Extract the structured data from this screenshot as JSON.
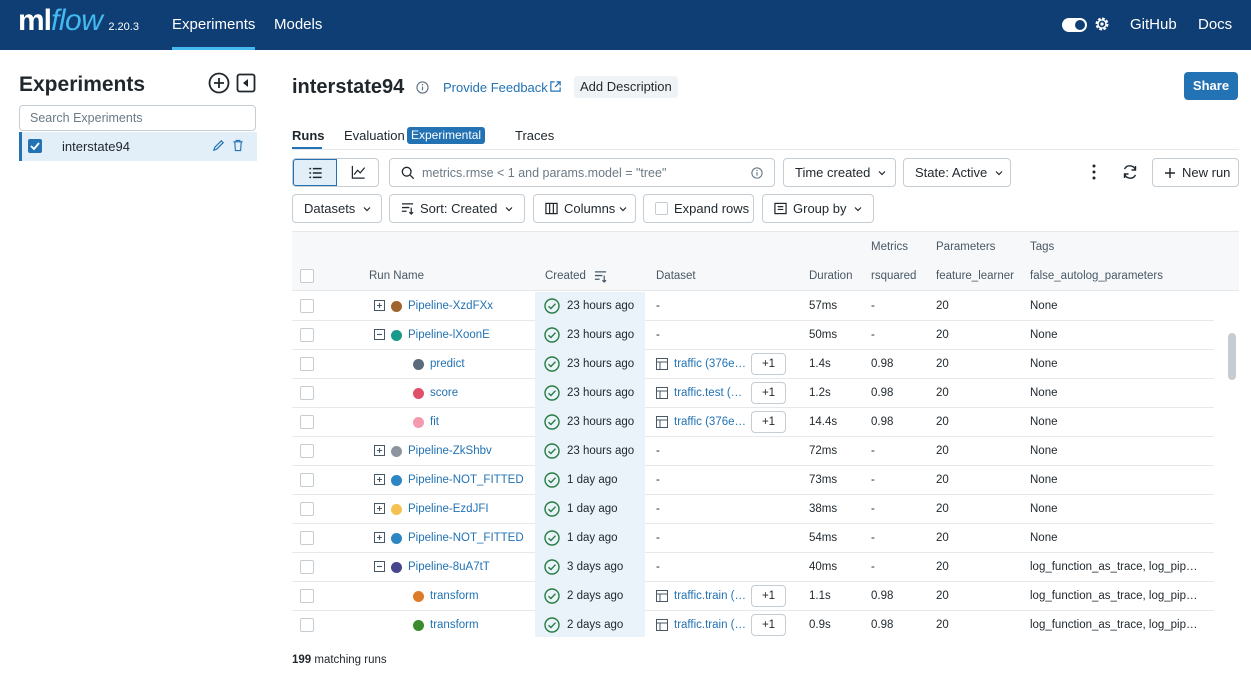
{
  "topbar": {
    "logo_ml": "ml",
    "logo_flow": "flow",
    "version": "2.20.3",
    "nav": [
      {
        "label": "Experiments"
      },
      {
        "label": "Models"
      }
    ],
    "github": "GitHub",
    "docs": "Docs"
  },
  "sidebar": {
    "title": "Experiments",
    "search_placeholder": "Search Experiments",
    "experiments": [
      {
        "name": "interstate94",
        "checked": true
      }
    ]
  },
  "header": {
    "title": "interstate94",
    "feedback": "Provide Feedback",
    "add_description": "Add Description",
    "share": "Share"
  },
  "tabs": {
    "runs": "Runs",
    "evaluation": "Evaluation",
    "experimental_badge": "Experimental",
    "traces": "Traces"
  },
  "toolbar": {
    "search_placeholder": "metrics.rmse < 1 and params.model = \"tree\"",
    "time_created": "Time created",
    "state": "State: Active",
    "new_run": "New run",
    "datasets": "Datasets",
    "sort": "Sort: Created",
    "columns": "Columns",
    "expand_rows": "Expand rows",
    "group_by": "Group by"
  },
  "table": {
    "group_headers": {
      "metrics": "Metrics",
      "parameters": "Parameters",
      "tags": "Tags"
    },
    "columns": {
      "run_name": "Run Name",
      "created": "Created",
      "dataset": "Dataset",
      "duration": "Duration",
      "rsquared": "rsquared",
      "feature_learner": "feature_learner",
      "tags": "false_autolog_parameters"
    },
    "rows": [
      {
        "expand": "plus",
        "indent": 0,
        "color": "#a0642d",
        "name": "Pipeline-XzdFXx",
        "created": "23 hours ago",
        "dataset": "-",
        "dataset_more": "",
        "duration": "57ms",
        "rsquared": "-",
        "feature_learner": "20",
        "tags": "None"
      },
      {
        "expand": "minus",
        "indent": 0,
        "color": "#1a9a8a",
        "name": "Pipeline-lXoonE",
        "created": "23 hours ago",
        "dataset": "-",
        "dataset_more": "",
        "duration": "50ms",
        "rsquared": "-",
        "feature_learner": "20",
        "tags": "None"
      },
      {
        "expand": "",
        "indent": 1,
        "color": "#5a6b7b",
        "name": "predict",
        "created": "23 hours ago",
        "dataset": "traffic (376e5…",
        "dataset_more": "+1",
        "duration": "1.4s",
        "rsquared": "0.98",
        "feature_learner": "20",
        "tags": "None"
      },
      {
        "expand": "",
        "indent": 1,
        "color": "#e0506b",
        "name": "score",
        "created": "23 hours ago",
        "dataset": "traffic.test (…",
        "dataset_more": "+1",
        "duration": "1.2s",
        "rsquared": "0.98",
        "feature_learner": "20",
        "tags": "None"
      },
      {
        "expand": "",
        "indent": 1,
        "color": "#f39aae",
        "name": "fit",
        "created": "23 hours ago",
        "dataset": "traffic (376e5…",
        "dataset_more": "+1",
        "duration": "14.4s",
        "rsquared": "0.98",
        "feature_learner": "20",
        "tags": "None"
      },
      {
        "expand": "plus",
        "indent": 0,
        "color": "#8c959e",
        "name": "Pipeline-ZkShbv",
        "created": "23 hours ago",
        "dataset": "-",
        "dataset_more": "",
        "duration": "72ms",
        "rsquared": "-",
        "feature_learner": "20",
        "tags": "None"
      },
      {
        "expand": "plus",
        "indent": 0,
        "color": "#2b86c1",
        "name": "Pipeline-NOT_FITTED",
        "created": "1 day ago",
        "dataset": "-",
        "dataset_more": "",
        "duration": "73ms",
        "rsquared": "-",
        "feature_learner": "20",
        "tags": "None"
      },
      {
        "expand": "plus",
        "indent": 0,
        "color": "#f5c152",
        "name": "Pipeline-EzdJFI",
        "created": "1 day ago",
        "dataset": "-",
        "dataset_more": "",
        "duration": "38ms",
        "rsquared": "-",
        "feature_learner": "20",
        "tags": "None"
      },
      {
        "expand": "plus",
        "indent": 0,
        "color": "#2b86c1",
        "name": "Pipeline-NOT_FITTED",
        "created": "1 day ago",
        "dataset": "-",
        "dataset_more": "",
        "duration": "54ms",
        "rsquared": "-",
        "feature_learner": "20",
        "tags": "None"
      },
      {
        "expand": "minus",
        "indent": 0,
        "color": "#48468d",
        "name": "Pipeline-8uA7tT",
        "created": "3 days ago",
        "dataset": "-",
        "dataset_more": "",
        "duration": "40ms",
        "rsquared": "-",
        "feature_learner": "20",
        "tags": "log_function_as_trace, log_pip…"
      },
      {
        "expand": "",
        "indent": 1,
        "color": "#de7b29",
        "name": "transform",
        "created": "2 days ago",
        "dataset": "traffic.train (…",
        "dataset_more": "+1",
        "duration": "1.1s",
        "rsquared": "0.98",
        "feature_learner": "20",
        "tags": "log_function_as_trace, log_pip…"
      },
      {
        "expand": "",
        "indent": 1,
        "color": "#3a8a2e",
        "name": "transform",
        "created": "2 days ago",
        "dataset": "traffic.train (…",
        "dataset_more": "+1",
        "duration": "0.9s",
        "rsquared": "0.98",
        "feature_learner": "20",
        "tags": "log_function_as_trace, log_pip…"
      }
    ]
  },
  "footer": {
    "count": "199",
    "suffix": "matching runs"
  }
}
